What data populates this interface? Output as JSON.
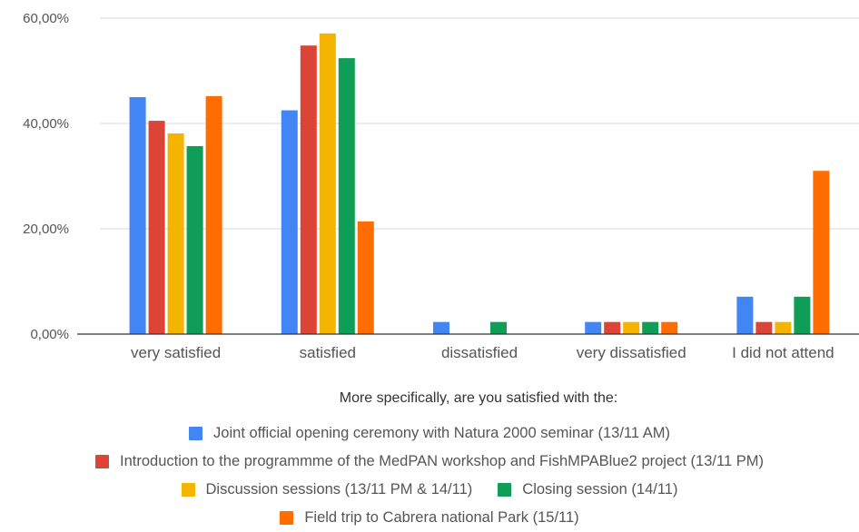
{
  "chart_data": {
    "type": "bar",
    "xlabel": "More specifically, are you satisfied with the:",
    "ylabel": "",
    "ylim": [
      0,
      60
    ],
    "yticks": [
      "0,00%",
      "20,00%",
      "40,00%",
      "60,00%"
    ],
    "categories": [
      "very satisfied",
      "satisfied",
      "dissatisfied",
      "very dissatisfied",
      "I did not attend"
    ],
    "series": [
      {
        "name": "Joint official opening ceremony with Natura 2000 seminar (13/11 AM)",
        "color": "#4285f4",
        "values": [
          45,
          42.5,
          2.3,
          2.3,
          7.1
        ]
      },
      {
        "name": "Introduction to the programmme of the MedPAN workshop and FishMPABlue2 project (13/11 PM)",
        "color": "#db4437",
        "values": [
          40.5,
          54.8,
          0,
          2.3,
          2.3
        ]
      },
      {
        "name": "Discussion sessions (13/11 PM & 14/11)",
        "color": "#f4b400",
        "values": [
          38.1,
          57.1,
          0,
          2.3,
          2.3
        ]
      },
      {
        "name": "Closing session (14/11)",
        "color": "#0f9d58",
        "values": [
          35.7,
          52.4,
          2.3,
          2.3,
          7.1
        ]
      },
      {
        "name": "Field trip to Cabrera national Park (15/11)",
        "color": "#ff6d00",
        "values": [
          45.2,
          21.4,
          0,
          2.3,
          31.0
        ]
      }
    ],
    "grid": true,
    "legend_position": "bottom"
  }
}
